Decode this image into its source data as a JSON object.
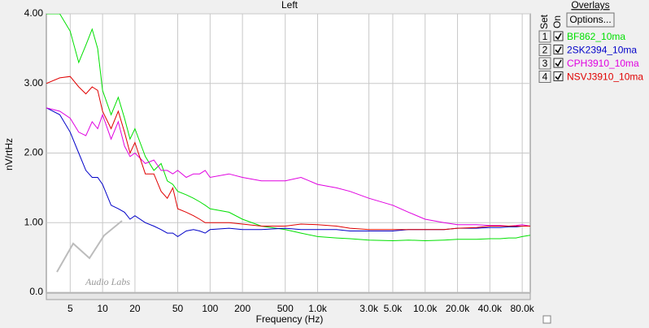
{
  "chart_data": {
    "type": "line",
    "title": "Left",
    "x_label": "Frequency (Hz)",
    "y_label": "nV/rtHz",
    "x_log": true,
    "grid": true,
    "xlim": [
      3,
      95000
    ],
    "ylim": [
      0,
      4
    ],
    "yticks": [
      {
        "value": 0,
        "label": "0.0"
      },
      {
        "value": 1,
        "label": "1.00"
      },
      {
        "value": 2,
        "label": "2.00"
      },
      {
        "value": 3,
        "label": "3.00"
      },
      {
        "value": 4,
        "label": "4.00"
      }
    ],
    "xticks": [
      5,
      10,
      20,
      50,
      100,
      200,
      500,
      {
        "value": 1000,
        "label": "1.0k"
      },
      {
        "value": 3000,
        "label": "3.0k"
      },
      {
        "value": 5000,
        "label": "5.0k"
      },
      {
        "value": 10000,
        "label": "10.0k"
      },
      {
        "value": 20000,
        "label": "20.0k"
      },
      {
        "value": 40000,
        "label": "40.0k"
      },
      {
        "value": 80000,
        "label": "80.0k"
      }
    ],
    "x": [
      3,
      4,
      5,
      6,
      7,
      8,
      9,
      10,
      12,
      14,
      16,
      18,
      20,
      25,
      30,
      35,
      40,
      45,
      50,
      60,
      70,
      80,
      90,
      100,
      150,
      200,
      300,
      500,
      700,
      1000,
      1500,
      2000,
      3000,
      5000,
      7000,
      10000,
      15000,
      20000,
      30000,
      40000,
      50000,
      60000,
      70000,
      80000,
      95000
    ],
    "series": [
      {
        "name": "BF862_10ma",
        "color": "#00e000",
        "values": [
          4.0,
          4.0,
          3.75,
          3.3,
          3.55,
          3.78,
          3.5,
          2.9,
          2.55,
          2.8,
          2.5,
          2.2,
          2.35,
          1.95,
          1.75,
          1.85,
          1.6,
          1.55,
          1.45,
          1.4,
          1.35,
          1.3,
          1.25,
          1.2,
          1.15,
          1.05,
          0.95,
          0.9,
          0.85,
          0.8,
          0.78,
          0.77,
          0.75,
          0.74,
          0.75,
          0.74,
          0.75,
          0.76,
          0.76,
          0.77,
          0.77,
          0.78,
          0.78,
          0.8,
          0.82
        ]
      },
      {
        "name": "2SK2394_10ma",
        "color": "#0000c8",
        "values": [
          2.65,
          2.55,
          2.3,
          2.0,
          1.75,
          1.65,
          1.65,
          1.55,
          1.25,
          1.2,
          1.15,
          1.05,
          1.1,
          1.0,
          0.95,
          0.9,
          0.85,
          0.85,
          0.8,
          0.88,
          0.9,
          0.88,
          0.85,
          0.9,
          0.92,
          0.9,
          0.9,
          0.92,
          0.9,
          0.9,
          0.9,
          0.88,
          0.88,
          0.88,
          0.9,
          0.9,
          0.9,
          0.92,
          0.92,
          0.93,
          0.93,
          0.94,
          0.94,
          0.95,
          0.95
        ]
      },
      {
        "name": "CPH3910_10ma",
        "color": "#e000e0",
        "values": [
          2.65,
          2.6,
          2.5,
          2.3,
          2.25,
          2.45,
          2.35,
          2.55,
          2.2,
          2.45,
          2.1,
          1.95,
          2.0,
          1.85,
          1.9,
          1.75,
          1.75,
          1.7,
          1.75,
          1.65,
          1.7,
          1.7,
          1.75,
          1.65,
          1.7,
          1.65,
          1.6,
          1.6,
          1.65,
          1.55,
          1.5,
          1.45,
          1.35,
          1.25,
          1.15,
          1.05,
          1.0,
          0.97,
          0.97,
          0.96,
          0.96,
          0.95,
          0.96,
          0.97,
          0.95
        ]
      },
      {
        "name": "NSVJ3910_10ma",
        "color": "#e00000",
        "values": [
          3.0,
          3.08,
          3.1,
          2.95,
          2.85,
          2.95,
          2.9,
          2.6,
          2.35,
          2.6,
          2.3,
          2.0,
          2.15,
          1.7,
          1.7,
          1.45,
          1.35,
          1.5,
          1.2,
          1.15,
          1.1,
          1.05,
          1.0,
          1.0,
          1.0,
          0.98,
          0.95,
          0.95,
          0.98,
          0.97,
          0.95,
          0.92,
          0.9,
          0.9,
          0.9,
          0.9,
          0.9,
          0.92,
          0.93,
          0.95,
          0.95,
          0.95,
          0.95,
          0.95,
          0.95
        ]
      }
    ],
    "watermark": "Audio Labs"
  },
  "overlay_panel": {
    "title": "Overlays",
    "options_button": "Options...",
    "set_header": "Set",
    "on_header": "On",
    "set_numbers": [
      "1",
      "2",
      "3",
      "4"
    ]
  }
}
